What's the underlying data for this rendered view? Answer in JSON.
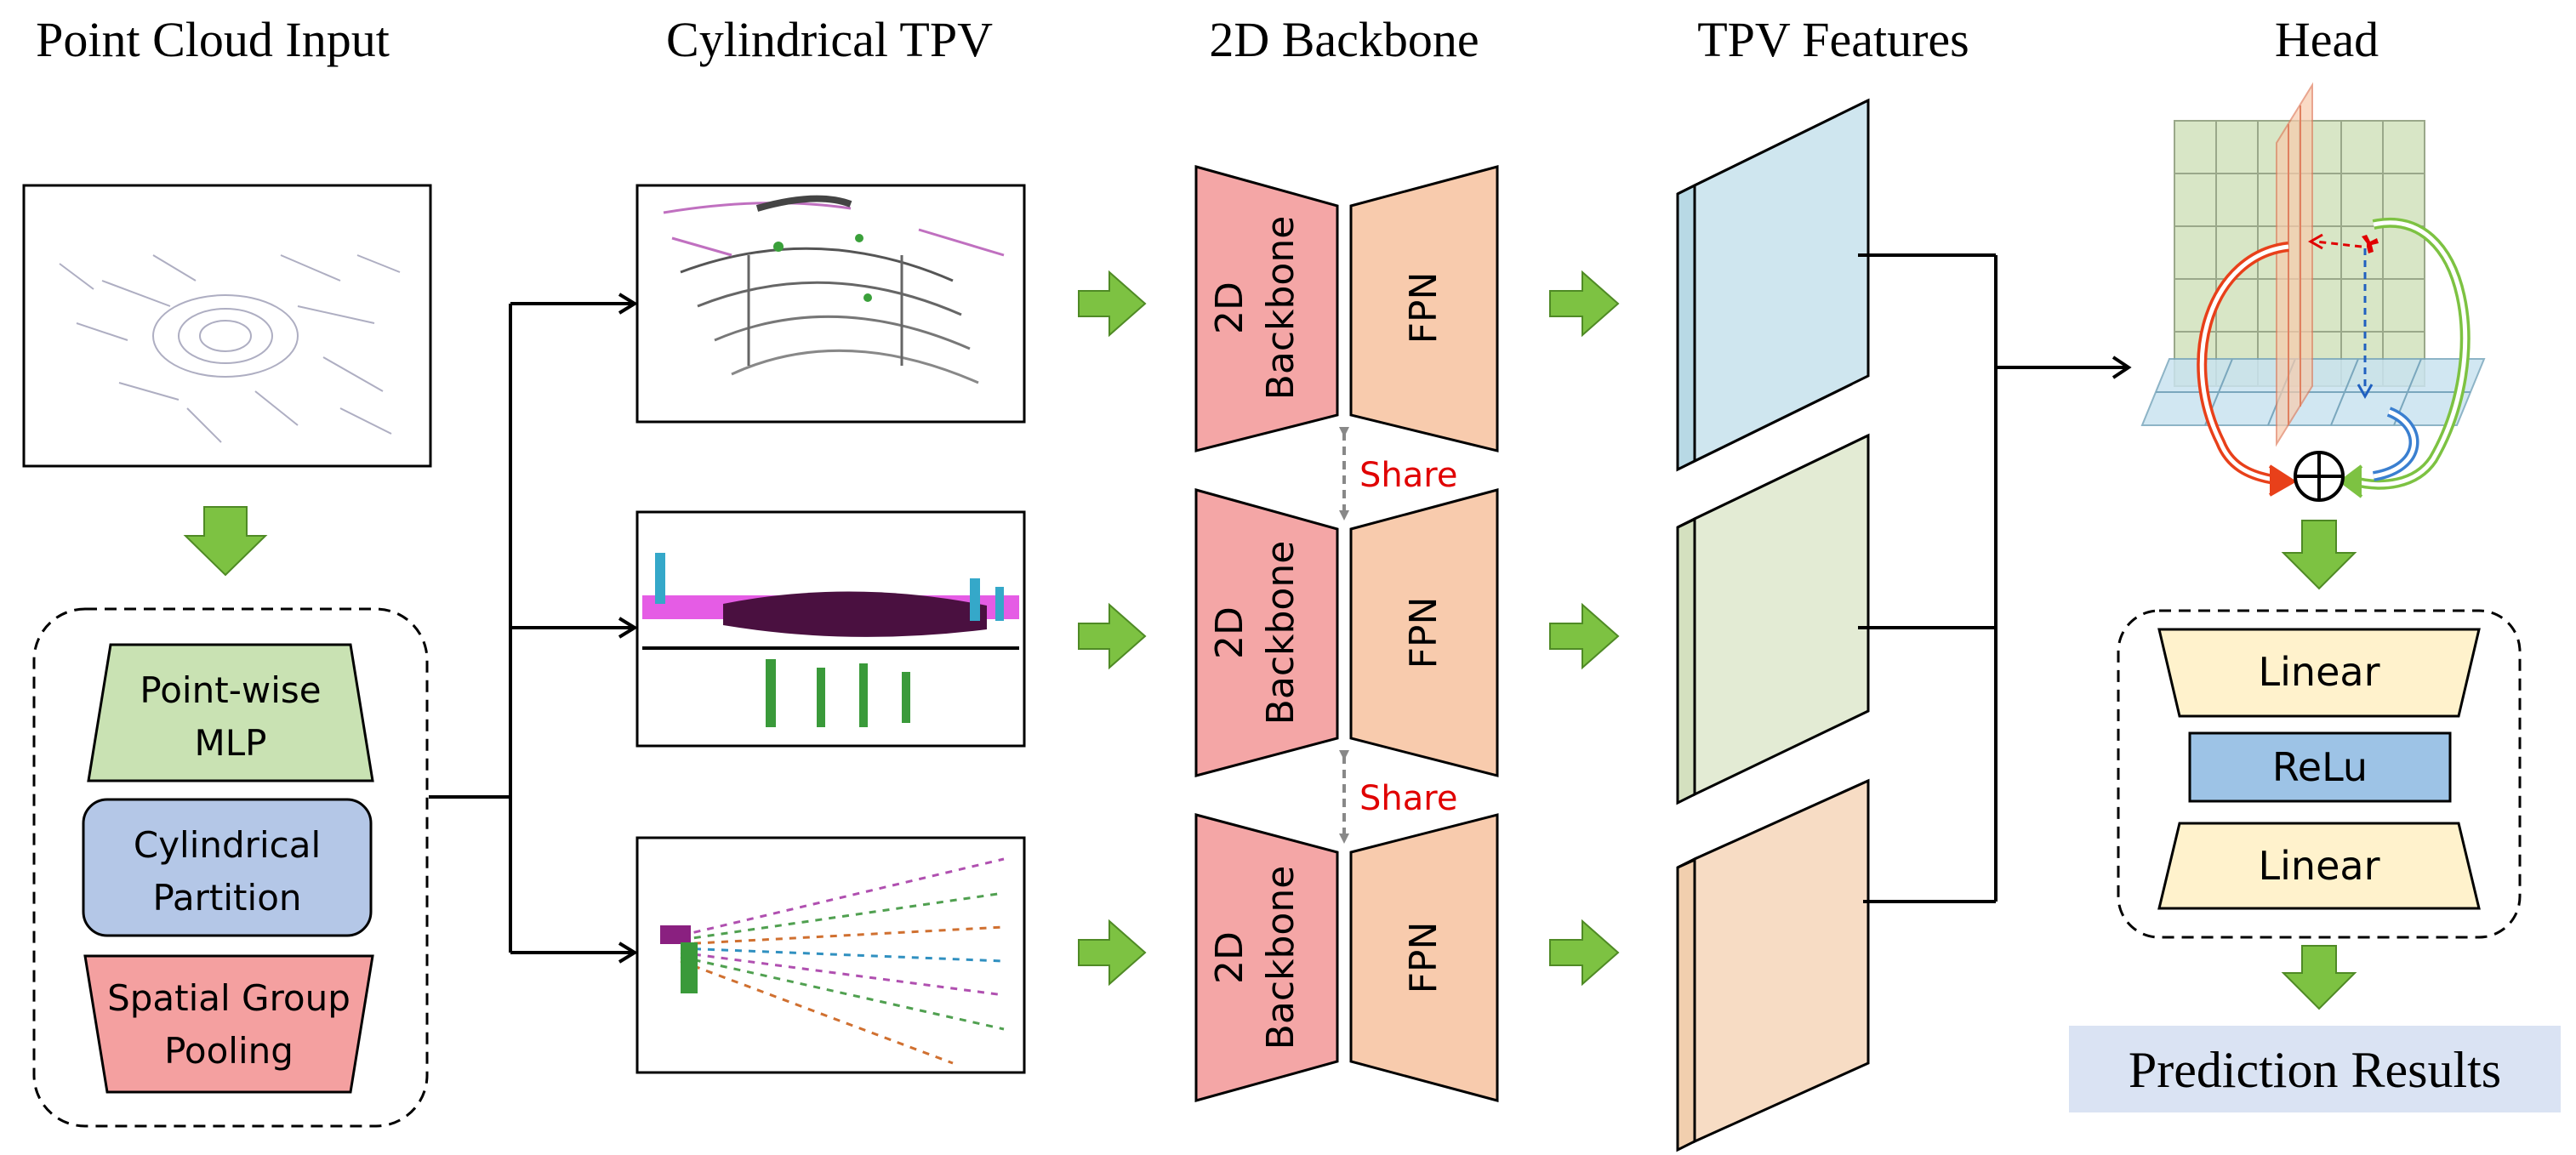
{
  "columns": {
    "point_cloud": "Point Cloud Input",
    "cylindrical_tpv": "Cylindrical TPV",
    "backbone": "2D Backbone",
    "tpv_features": "TPV Features",
    "head": "Head"
  },
  "encoder": {
    "mlp_line1": "Point-wise",
    "mlp_line2": "MLP",
    "partition_line1": "Cylindrical",
    "partition_line2": "Partition",
    "pooling_line1": "Spatial Group",
    "pooling_line2": "Pooling"
  },
  "backbone": {
    "line1": "2D",
    "line2": "Backbone",
    "fpn": "FPN",
    "share": "Share"
  },
  "head": {
    "linear": "Linear",
    "relu": "ReLu",
    "result": "Prediction Results"
  },
  "colors": {
    "arrow_green": "#7dc242",
    "mlp": "#c9e2b3",
    "partition": "#b4c7e7",
    "pooling": "#f4a0a0",
    "backbone": "#f4a6a6",
    "fpn": "#f8cbad",
    "feature_blue": "#cfe6ef",
    "feature_green": "#e3ebd4",
    "feature_orange": "#f7dcc4",
    "linear": "#fff2cc",
    "relu": "#9dc3e6",
    "result_bg": "#dae3f3",
    "share_text": "#e00000"
  }
}
